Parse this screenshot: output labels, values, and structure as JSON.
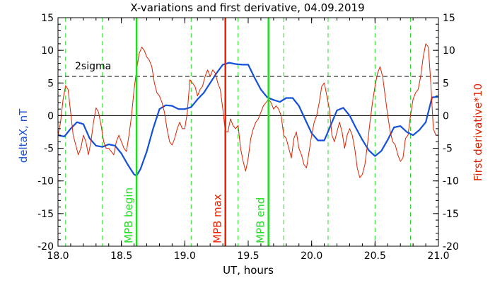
{
  "chart_data": {
    "type": "line",
    "title": "X-variations and first derivative, 04.09.2019",
    "xlabel": "UT, hours",
    "ylabel_left": "deltaX, nT",
    "ylabel_right": "First derivative*10",
    "xlim": [
      18.0,
      21.0
    ],
    "ylim": [
      -20,
      15
    ],
    "x_ticks": [
      "18.0",
      "18.5",
      "19.0",
      "19.5",
      "20.0",
      "20.5",
      "21.0"
    ],
    "y_ticks": [
      "15",
      "10",
      "5",
      "0",
      "-5",
      "-10",
      "-15",
      "-20"
    ],
    "threshold": {
      "label": "2sigma",
      "value": 6
    },
    "zero_line": 0,
    "green_dashed_x": [
      18.06,
      18.35,
      19.05,
      19.42,
      19.78,
      20.13,
      20.5,
      20.78
    ],
    "markers": [
      {
        "label": "MPB begin",
        "x": 18.62,
        "color": "#22dd22"
      },
      {
        "label": "MPB max",
        "x": 19.32,
        "color": "#ee2200"
      },
      {
        "label": "MPB end",
        "x": 19.66,
        "color": "#22dd22"
      }
    ],
    "series": [
      {
        "name": "deltaX, nT",
        "color": "#1450d8",
        "x": [
          18.0,
          18.05,
          18.1,
          18.15,
          18.2,
          18.25,
          18.3,
          18.35,
          18.4,
          18.45,
          18.5,
          18.55,
          18.6,
          18.62,
          18.65,
          18.7,
          18.75,
          18.8,
          18.85,
          18.9,
          18.95,
          19.0,
          19.05,
          19.1,
          19.15,
          19.2,
          19.25,
          19.3,
          19.35,
          19.4,
          19.45,
          19.5,
          19.55,
          19.6,
          19.65,
          19.7,
          19.75,
          19.8,
          19.85,
          19.9,
          19.95,
          20.0,
          20.05,
          20.1,
          20.15,
          20.2,
          20.25,
          20.3,
          20.35,
          20.4,
          20.45,
          20.5,
          20.55,
          20.6,
          20.65,
          20.7,
          20.75,
          20.8,
          20.85,
          20.9,
          20.95,
          21.0
        ],
        "values": [
          -3.0,
          -3.2,
          -2.0,
          -1.0,
          -1.3,
          -3.5,
          -4.6,
          -4.8,
          -4.4,
          -4.6,
          -5.8,
          -7.5,
          -9.0,
          -9.2,
          -8.2,
          -5.5,
          -2.0,
          1.0,
          1.6,
          1.5,
          1.0,
          1.0,
          1.3,
          2.5,
          3.5,
          5.0,
          6.5,
          7.8,
          8.1,
          7.9,
          7.8,
          7.8,
          5.8,
          4.0,
          2.8,
          2.4,
          2.1,
          2.7,
          2.7,
          1.5,
          -0.6,
          -2.7,
          -3.8,
          -3.8,
          -1.5,
          0.8,
          1.2,
          0.0,
          -1.9,
          -3.7,
          -5.3,
          -6.2,
          -5.4,
          -3.7,
          -1.8,
          -1.6,
          -2.5,
          -3.0,
          -2.2,
          -1.0,
          2.8,
          2.9
        ]
      },
      {
        "name": "First derivative*10",
        "color": "#dd2200",
        "x": [
          18.0,
          18.02,
          18.04,
          18.06,
          18.08,
          18.1,
          18.12,
          18.14,
          18.16,
          18.18,
          18.2,
          18.22,
          18.24,
          18.26,
          18.28,
          18.3,
          18.32,
          18.34,
          18.36,
          18.38,
          18.4,
          18.42,
          18.44,
          18.46,
          18.48,
          18.5,
          18.52,
          18.54,
          18.56,
          18.58,
          18.6,
          18.62,
          18.64,
          18.66,
          18.68,
          18.7,
          18.72,
          18.74,
          18.76,
          18.78,
          18.8,
          18.82,
          18.84,
          18.86,
          18.88,
          18.9,
          18.92,
          18.94,
          18.96,
          18.98,
          19.0,
          19.02,
          19.04,
          19.06,
          19.08,
          19.1,
          19.12,
          19.14,
          19.16,
          19.18,
          19.2,
          19.22,
          19.24,
          19.26,
          19.28,
          19.3,
          19.32,
          19.34,
          19.36,
          19.38,
          19.4,
          19.42,
          19.44,
          19.46,
          19.48,
          19.5,
          19.52,
          19.54,
          19.56,
          19.58,
          19.6,
          19.62,
          19.64,
          19.66,
          19.68,
          19.7,
          19.72,
          19.74,
          19.76,
          19.78,
          19.8,
          19.82,
          19.84,
          19.86,
          19.88,
          19.9,
          19.92,
          19.94,
          19.96,
          19.98,
          20.0,
          20.02,
          20.04,
          20.06,
          20.08,
          20.1,
          20.12,
          20.14,
          20.16,
          20.18,
          20.2,
          20.22,
          20.24,
          20.26,
          20.28,
          20.3,
          20.32,
          20.34,
          20.36,
          20.38,
          20.4,
          20.42,
          20.44,
          20.46,
          20.48,
          20.5,
          20.52,
          20.54,
          20.56,
          20.58,
          20.6,
          20.62,
          20.64,
          20.66,
          20.68,
          20.7,
          20.72,
          20.74,
          20.76,
          20.78,
          20.8,
          20.82,
          20.84,
          20.86,
          20.88,
          20.9,
          20.92,
          20.94,
          20.96,
          20.98,
          21.0
        ],
        "values": [
          -3.0,
          -1.0,
          2.5,
          4.6,
          4.0,
          0.5,
          -3.0,
          -4.5,
          -6.0,
          -5.0,
          -3.0,
          -4.0,
          -6.0,
          -4.0,
          -1.0,
          1.2,
          0.5,
          -1.5,
          -4.0,
          -5.0,
          -5.0,
          -5.5,
          -6.0,
          -4.0,
          -3.0,
          -4.0,
          -5.0,
          -5.5,
          -3.0,
          0.0,
          4.0,
          7.0,
          9.5,
          10.5,
          10.0,
          9.0,
          8.5,
          7.5,
          5.0,
          3.5,
          3.0,
          2.0,
          0.5,
          -2.0,
          -4.0,
          -4.5,
          -3.5,
          -2.0,
          -1.0,
          -2.0,
          -2.0,
          0.5,
          5.5,
          5.0,
          4.5,
          3.0,
          4.0,
          4.5,
          6.0,
          7.0,
          6.0,
          7.0,
          6.5,
          5.0,
          4.0,
          1.0,
          -2.5,
          -2.5,
          -0.5,
          -1.5,
          -2.0,
          -1.5,
          -5.0,
          -7.0,
          -8.5,
          -6.5,
          -3.5,
          -2.0,
          -1.0,
          -0.5,
          0.5,
          1.5,
          2.0,
          2.5,
          2.0,
          1.0,
          1.5,
          1.0,
          0.0,
          -3.0,
          -3.5,
          -5.0,
          -6.5,
          -3.5,
          -2.5,
          -5.0,
          -6.0,
          -7.5,
          -8.0,
          -5.5,
          -3.0,
          -1.0,
          0.0,
          2.0,
          4.5,
          5.0,
          3.0,
          1.0,
          -3.0,
          -4.0,
          -2.5,
          -1.0,
          -2.5,
          -5.0,
          -3.0,
          -2.0,
          -3.0,
          -5.0,
          -8.0,
          -9.5,
          -9.0,
          -7.5,
          -4.5,
          -1.0,
          2.0,
          4.5,
          6.5,
          7.5,
          6.0,
          3.0,
          0.0,
          -2.5,
          -4.0,
          -4.5,
          -6.0,
          -7.0,
          -6.5,
          -3.5,
          -3.0,
          0.0,
          2.5,
          3.5,
          4.0,
          6.0,
          9.0,
          11.0,
          10.5,
          5.0,
          -2.0,
          -3.0,
          -3.0
        ]
      }
    ]
  }
}
